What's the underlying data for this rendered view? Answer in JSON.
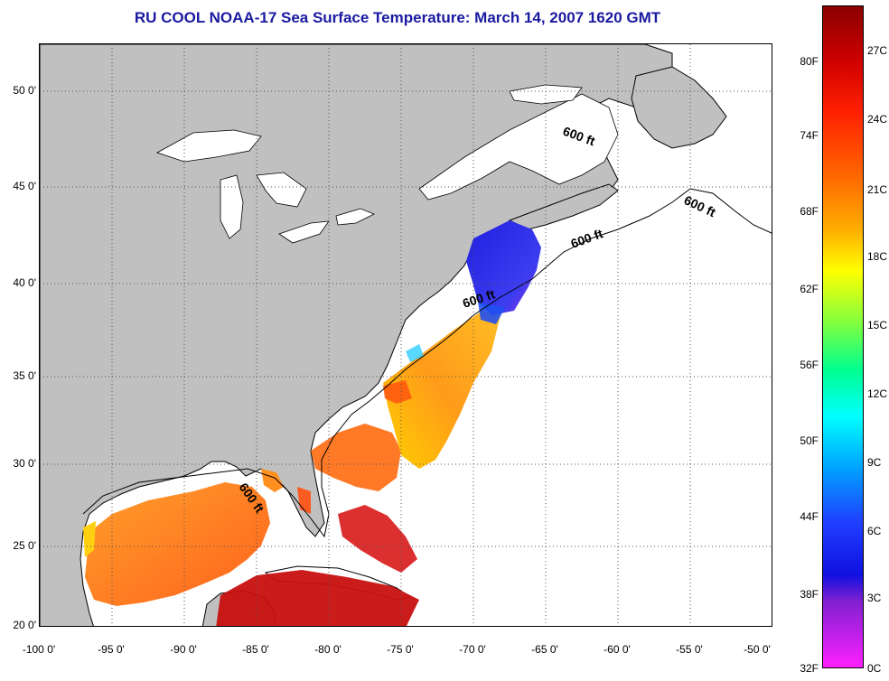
{
  "title": "RU COOL  NOAA-17  Sea Surface Temperature:  March 14, 2007 1620 GMT",
  "colors": {
    "title": "#1a1aa0",
    "land": "#c0c0c0",
    "ocean_nodata": "#ffffff",
    "gridline": "#555555"
  },
  "map": {
    "lat_ticks": [
      "50 0'",
      "45 0'",
      "40 0'",
      "35 0'",
      "30 0'",
      "25 0'",
      "20 0'"
    ],
    "lon_ticks": [
      "-100 0'",
      "-95 0'",
      "-90 0'",
      "-85 0'",
      "-80 0'",
      "-75 0'",
      "-70 0'",
      "-65 0'",
      "-60 0'",
      "-55 0'",
      "-50 0'"
    ],
    "contour_labels": [
      "600 ft",
      "600 ft",
      "600 ft",
      "600 ft",
      "600 ft"
    ]
  },
  "colorbar": {
    "fahrenheit_ticks": [
      "80F",
      "74F",
      "68F",
      "62F",
      "56F",
      "50F",
      "44F",
      "38F",
      "32F"
    ],
    "celsius_ticks": [
      "27C",
      "24C",
      "21C",
      "18C",
      "15C",
      "12C",
      "9C",
      "6C",
      "3C",
      "0C"
    ]
  }
}
